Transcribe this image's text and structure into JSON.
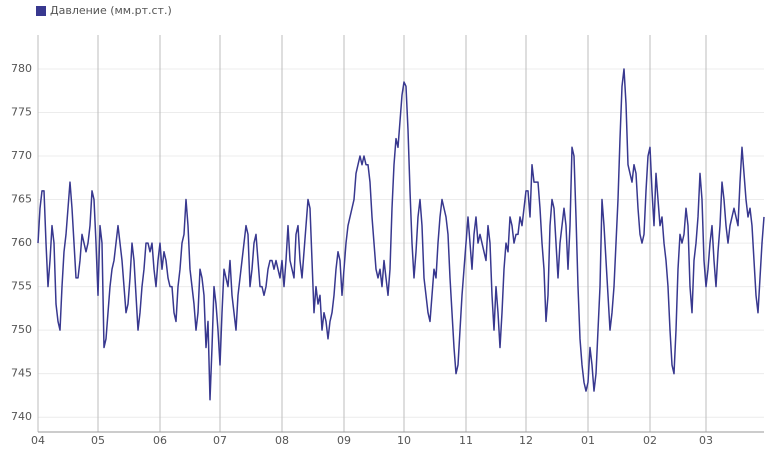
{
  "chart_data": {
    "type": "line",
    "series": [
      {
        "name": "Давление (мм.рт.ст.)",
        "color": "#38388f",
        "values": [
          760,
          764,
          766,
          766,
          760,
          755,
          758,
          762,
          760,
          753,
          751,
          750,
          755,
          759,
          761,
          764,
          767,
          764,
          760,
          756,
          756,
          758,
          761,
          760,
          759,
          760,
          762,
          766,
          765,
          760,
          754,
          762,
          760,
          748,
          749,
          752,
          755,
          757,
          758,
          760,
          762,
          760,
          758,
          755,
          752,
          753,
          756,
          760,
          758,
          754,
          750,
          752,
          755,
          757,
          760,
          760,
          759,
          760,
          757,
          755,
          758,
          760,
          757,
          759,
          758,
          756,
          755,
          755,
          752,
          751,
          755,
          757,
          760,
          761,
          765,
          762,
          757,
          755,
          753,
          750,
          752,
          757,
          756,
          754,
          748,
          751,
          742,
          748,
          755,
          753,
          750,
          746,
          752,
          757,
          756,
          755,
          758,
          754,
          752,
          750,
          754,
          756,
          758,
          760,
          762,
          761,
          755,
          757,
          760,
          761,
          758,
          755,
          755,
          754,
          755,
          757,
          758,
          758,
          757,
          758,
          757,
          756,
          758,
          755,
          758,
          762,
          758,
          757,
          756,
          761,
          762,
          758,
          756,
          759,
          762,
          765,
          764,
          758,
          752,
          755,
          753,
          754,
          750,
          752,
          751,
          749,
          751,
          752,
          754,
          757,
          759,
          758,
          754,
          757,
          760,
          762,
          763,
          764,
          765,
          768,
          769,
          770,
          769,
          770,
          769,
          769,
          767,
          763,
          760,
          757,
          756,
          757,
          755,
          758,
          756,
          754,
          757,
          764,
          769,
          772,
          771,
          774,
          777,
          778.5,
          778,
          773,
          766,
          760,
          756,
          759,
          763,
          765,
          762,
          756,
          754,
          752,
          751,
          754,
          757,
          756,
          760,
          763,
          765,
          764,
          763,
          761,
          756,
          752,
          748,
          745,
          746,
          750,
          754,
          757,
          760,
          763,
          760,
          757,
          761,
          763,
          760,
          761,
          760,
          759,
          758,
          762,
          760,
          754,
          750,
          755,
          752,
          748,
          752,
          757,
          760,
          759,
          763,
          762,
          760,
          761,
          761,
          763,
          762,
          764,
          766,
          766,
          763,
          769,
          767,
          767,
          767,
          764,
          760,
          757,
          751,
          754,
          762,
          765,
          764,
          760,
          756,
          760,
          762,
          764,
          762,
          757,
          762,
          771,
          770,
          763,
          755,
          749,
          746,
          744,
          743,
          744,
          748,
          746,
          743,
          745,
          750,
          755,
          765,
          762,
          758,
          754,
          750,
          752,
          755,
          760,
          765,
          772,
          778,
          780,
          776,
          769,
          768,
          767,
          769,
          768,
          764,
          761,
          760,
          761,
          766,
          770,
          771,
          766,
          762,
          768,
          765,
          762,
          763,
          760,
          758,
          755,
          750,
          746,
          745,
          750,
          757,
          761,
          760,
          761,
          764,
          762,
          755,
          752,
          758,
          760,
          763,
          768,
          765,
          758,
          755,
          757,
          760,
          762,
          758,
          755,
          759,
          762,
          767,
          765,
          762,
          760,
          762,
          763,
          764,
          763,
          762,
          767,
          771,
          768,
          765,
          763,
          764,
          762,
          758,
          754,
          752,
          756,
          760,
          763
        ]
      }
    ],
    "x": [
      0,
      1,
      2,
      3,
      4,
      5,
      6,
      7,
      8,
      9,
      10,
      11,
      12,
      13,
      14,
      15,
      16,
      17,
      18,
      19,
      20,
      21,
      22,
      23,
      24,
      25,
      26,
      27,
      28,
      29,
      30,
      31,
      32,
      33,
      34,
      35,
      36,
      37,
      38,
      39,
      40,
      41,
      42,
      43,
      44,
      45,
      46,
      47,
      48,
      49,
      50,
      51,
      52,
      53,
      54,
      55,
      56,
      57,
      58,
      59,
      60,
      61,
      62,
      63,
      64,
      65,
      66,
      67,
      68,
      69,
      70,
      71,
      72,
      73,
      74,
      75,
      76,
      77,
      78,
      79,
      80,
      81,
      82,
      83,
      84,
      85,
      86,
      87,
      88,
      89,
      90,
      91,
      92,
      93,
      94,
      95,
      96,
      97,
      98,
      99,
      100,
      101,
      102,
      103,
      104,
      105,
      106,
      107,
      108,
      109,
      110,
      111,
      112,
      113,
      114,
      115,
      116,
      117,
      118,
      119,
      120,
      121,
      122,
      123,
      124,
      125,
      126,
      127,
      128,
      129,
      130,
      131,
      132,
      133,
      134,
      135,
      136,
      137,
      138,
      139,
      140,
      141,
      142,
      143,
      144,
      145,
      146,
      147,
      148,
      149,
      150,
      151,
      152,
      153,
      154,
      155,
      156,
      157,
      158,
      159,
      160,
      161,
      162,
      163,
      164,
      165,
      166,
      167,
      168,
      169,
      170,
      171,
      172,
      173,
      174,
      175,
      176,
      177,
      178,
      179,
      180,
      181,
      182,
      183,
      184,
      185,
      186,
      187,
      188,
      189,
      190,
      191,
      192,
      193,
      194,
      195,
      196,
      197,
      198,
      199,
      200,
      201,
      202,
      203,
      204,
      205,
      206,
      207,
      208,
      209,
      210,
      211,
      212,
      213,
      214,
      215,
      216,
      217,
      218,
      219,
      220,
      221,
      222,
      223,
      224,
      225,
      226,
      227,
      228,
      229,
      230,
      231,
      232,
      233,
      234,
      235,
      236,
      237,
      238,
      239,
      240,
      241,
      242,
      243,
      244,
      245,
      246,
      247,
      248,
      249,
      250,
      251,
      252,
      253,
      254,
      255,
      256,
      257,
      258,
      259,
      260,
      261,
      262,
      263,
      264,
      265,
      266,
      267,
      268,
      269,
      270,
      271,
      272,
      273,
      274,
      275,
      276,
      277,
      278,
      279,
      280,
      281,
      282,
      283,
      284,
      285,
      286,
      287,
      288,
      289,
      290,
      291,
      292,
      293,
      294,
      295,
      296,
      297,
      298,
      299,
      300,
      301,
      302,
      303,
      304,
      305,
      306,
      307,
      308,
      309,
      310,
      311,
      312,
      313,
      314,
      315,
      316,
      317,
      318,
      319,
      320,
      321,
      322,
      323,
      324,
      325,
      326,
      327,
      328,
      329,
      330,
      331,
      332,
      333,
      334,
      335,
      336,
      337,
      338,
      339,
      340,
      341,
      342,
      343,
      344,
      345,
      346,
      347,
      348,
      349,
      350,
      351,
      352,
      353,
      354,
      355,
      356,
      357,
      358,
      359,
      360,
      361,
      362,
      363
    ],
    "xlim": [
      0,
      363
    ],
    "xticks": [
      {
        "value": 0,
        "label": "04"
      },
      {
        "value": 30,
        "label": "05"
      },
      {
        "value": 61,
        "label": "06"
      },
      {
        "value": 91,
        "label": "07"
      },
      {
        "value": 122,
        "label": "08"
      },
      {
        "value": 153,
        "label": "09"
      },
      {
        "value": 183,
        "label": "10"
      },
      {
        "value": 214,
        "label": "11"
      },
      {
        "value": 244,
        "label": "12"
      },
      {
        "value": 275,
        "label": "01"
      },
      {
        "value": 306,
        "label": "02"
      },
      {
        "value": 334,
        "label": "03"
      }
    ],
    "ylim": [
      738.3,
      783.9
    ],
    "yticks": [
      740,
      745,
      750,
      755,
      760,
      765,
      770,
      775,
      780
    ],
    "grid": true,
    "legend": "top-left"
  }
}
